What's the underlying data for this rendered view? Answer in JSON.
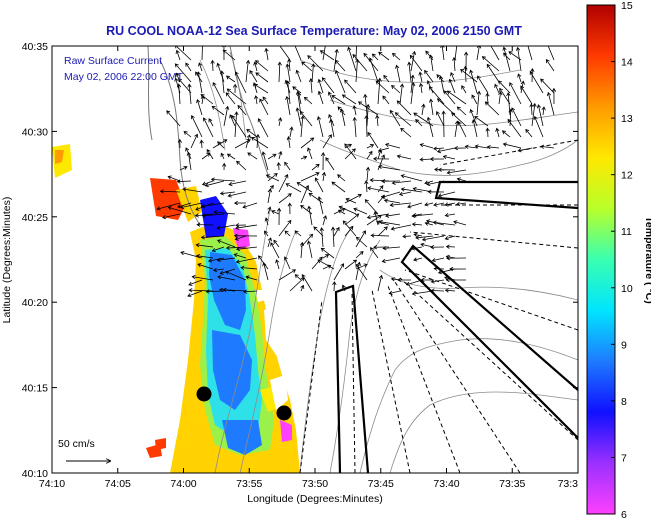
{
  "title": "RU COOL  NOAA-12  Sea Surface Temperature:  May 02, 2006 2150 GMT",
  "overlay": {
    "line1": "Raw Surface Current",
    "line2": "May 02, 2006 22:00 GMT"
  },
  "scale_label": "50 cm/s",
  "axes": {
    "xlabel": "Longitude (Degrees:Minutes)",
    "ylabel": "Latitude (Degrees:Minutes)",
    "x_ticks": [
      "74:10",
      "74:05",
      "74:00",
      "73:55",
      "73:50",
      "73:45",
      "73:40",
      "73:35",
      "73:3"
    ],
    "y_ticks": [
      "40:35",
      "40:30",
      "40:25",
      "40:20",
      "40:15",
      "40:10"
    ]
  },
  "colorbar": {
    "label": "Temperature ( °C)",
    "ticks": [
      "15",
      "14",
      "13",
      "12",
      "11",
      "10",
      "9",
      "8",
      "7",
      "6"
    ],
    "min": 6,
    "max": 15,
    "colors": [
      "#ff40ff",
      "#9b30ff",
      "#1010ff",
      "#1e7bff",
      "#00e5ff",
      "#39ffb0",
      "#b8ff2a",
      "#ffe800",
      "#ff9a00",
      "#ff3a00",
      "#b00000"
    ]
  },
  "colors": {
    "title": "#1a1ab4",
    "land": "#ffffff",
    "outline": "#000000",
    "bathymetry": "#8c8c8c"
  }
}
